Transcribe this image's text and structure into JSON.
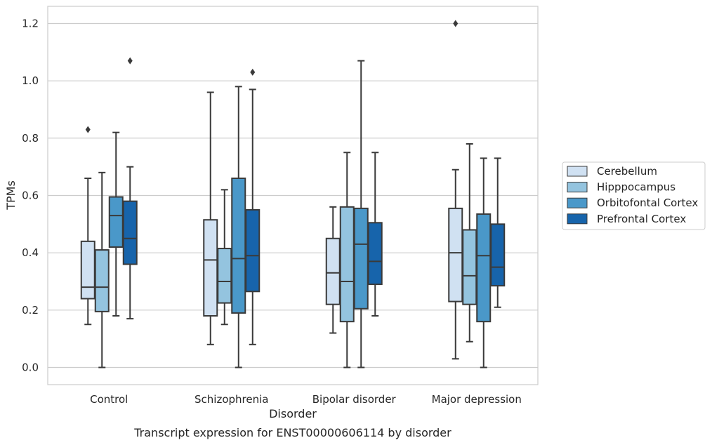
{
  "chart_data": {
    "type": "box",
    "caption": "Transcript expression for ENST00000606114 by disorder",
    "xlabel": "Disorder",
    "ylabel": "TPMs",
    "ylim": [
      -0.06,
      1.26
    ],
    "yticks": [
      0.0,
      0.2,
      0.4,
      0.6,
      0.8,
      1.0,
      1.2
    ],
    "ytick_labels": [
      "0.0",
      "0.2",
      "0.4",
      "0.6",
      "0.8",
      "1.0",
      "1.2"
    ],
    "grid": "horizontal",
    "legend_position": "right",
    "categories": [
      "Control",
      "Schizophrenia",
      "Bipolar disorder",
      "Major depression"
    ],
    "series": [
      {
        "name": "Cerebellum",
        "color": "#d0e1f2",
        "boxes": [
          {
            "whisker_low": 0.15,
            "q1": 0.24,
            "median": 0.28,
            "q3": 0.44,
            "whisker_high": 0.66,
            "outliers": [
              0.83
            ]
          },
          {
            "whisker_low": 0.08,
            "q1": 0.18,
            "median": 0.375,
            "q3": 0.515,
            "whisker_high": 0.96,
            "outliers": []
          },
          {
            "whisker_low": 0.12,
            "q1": 0.22,
            "median": 0.33,
            "q3": 0.45,
            "whisker_high": 0.56,
            "outliers": []
          },
          {
            "whisker_low": 0.03,
            "q1": 0.23,
            "median": 0.4,
            "q3": 0.555,
            "whisker_high": 0.69,
            "outliers": [
              1.2
            ]
          }
        ]
      },
      {
        "name": "Hipppocampus",
        "color": "#94c4df",
        "boxes": [
          {
            "whisker_low": 0.0,
            "q1": 0.195,
            "median": 0.28,
            "q3": 0.41,
            "whisker_high": 0.68,
            "outliers": []
          },
          {
            "whisker_low": 0.15,
            "q1": 0.225,
            "median": 0.3,
            "q3": 0.415,
            "whisker_high": 0.62,
            "outliers": []
          },
          {
            "whisker_low": 0.0,
            "q1": 0.16,
            "median": 0.3,
            "q3": 0.56,
            "whisker_high": 0.75,
            "outliers": []
          },
          {
            "whisker_low": 0.09,
            "q1": 0.22,
            "median": 0.32,
            "q3": 0.48,
            "whisker_high": 0.78,
            "outliers": []
          }
        ]
      },
      {
        "name": "Orbitofontal Cortex",
        "color": "#4a98c9",
        "boxes": [
          {
            "whisker_low": 0.18,
            "q1": 0.42,
            "median": 0.53,
            "q3": 0.595,
            "whisker_high": 0.82,
            "outliers": []
          },
          {
            "whisker_low": 0.0,
            "q1": 0.19,
            "median": 0.38,
            "q3": 0.66,
            "whisker_high": 0.98,
            "outliers": []
          },
          {
            "whisker_low": 0.0,
            "q1": 0.205,
            "median": 0.43,
            "q3": 0.555,
            "whisker_high": 1.07,
            "outliers": []
          },
          {
            "whisker_low": 0.0,
            "q1": 0.16,
            "median": 0.39,
            "q3": 0.535,
            "whisker_high": 0.73,
            "outliers": []
          }
        ]
      },
      {
        "name": "Prefrontal Cortex",
        "color": "#1764ab",
        "boxes": [
          {
            "whisker_low": 0.17,
            "q1": 0.36,
            "median": 0.45,
            "q3": 0.58,
            "whisker_high": 0.7,
            "outliers": [
              1.07
            ]
          },
          {
            "whisker_low": 0.08,
            "q1": 0.265,
            "median": 0.39,
            "q3": 0.55,
            "whisker_high": 0.97,
            "outliers": [
              1.03
            ]
          },
          {
            "whisker_low": 0.18,
            "q1": 0.29,
            "median": 0.37,
            "q3": 0.505,
            "whisker_high": 0.75,
            "outliers": []
          },
          {
            "whisker_low": 0.21,
            "q1": 0.285,
            "median": 0.35,
            "q3": 0.5,
            "whisker_high": 0.73,
            "outliers": []
          }
        ]
      }
    ]
  }
}
